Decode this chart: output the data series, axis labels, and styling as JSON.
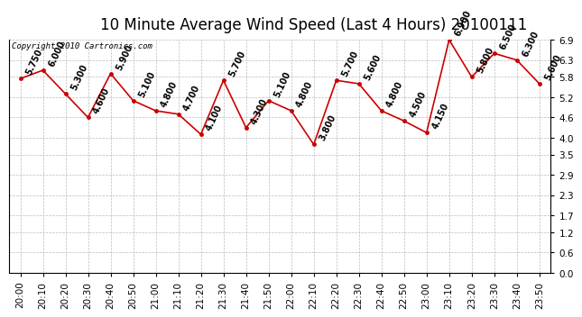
{
  "title": "10 Minute Average Wind Speed (Last 4 Hours) 20100111",
  "copyright": "Copyright 2010 Cartronics.com",
  "x_labels": [
    "20:00",
    "20:10",
    "20:20",
    "20:30",
    "20:40",
    "20:50",
    "21:00",
    "21:10",
    "21:20",
    "21:30",
    "21:40",
    "21:50",
    "22:00",
    "22:10",
    "22:20",
    "22:30",
    "22:40",
    "22:50",
    "23:00",
    "23:10",
    "23:20",
    "23:30",
    "23:40",
    "23:50"
  ],
  "y_values": [
    5.75,
    6.0,
    5.3,
    4.6,
    5.9,
    5.1,
    4.8,
    4.7,
    4.1,
    5.7,
    4.3,
    5.1,
    4.8,
    3.8,
    5.7,
    5.6,
    4.8,
    4.5,
    4.15,
    6.9,
    5.8,
    6.5,
    6.3,
    5.6
  ],
  "y_ticks": [
    0.0,
    0.6,
    1.2,
    1.7,
    2.3,
    2.9,
    3.5,
    4.0,
    4.6,
    5.2,
    5.8,
    6.3,
    6.9
  ],
  "line_color": "#cc0000",
  "marker_color": "#cc0000",
  "bg_color": "#ffffff",
  "grid_color": "#bbbbbb",
  "title_fontsize": 12,
  "tick_fontsize": 7.5,
  "annotation_fontsize": 7.0,
  "y_min": 0.0,
  "y_max": 6.9
}
